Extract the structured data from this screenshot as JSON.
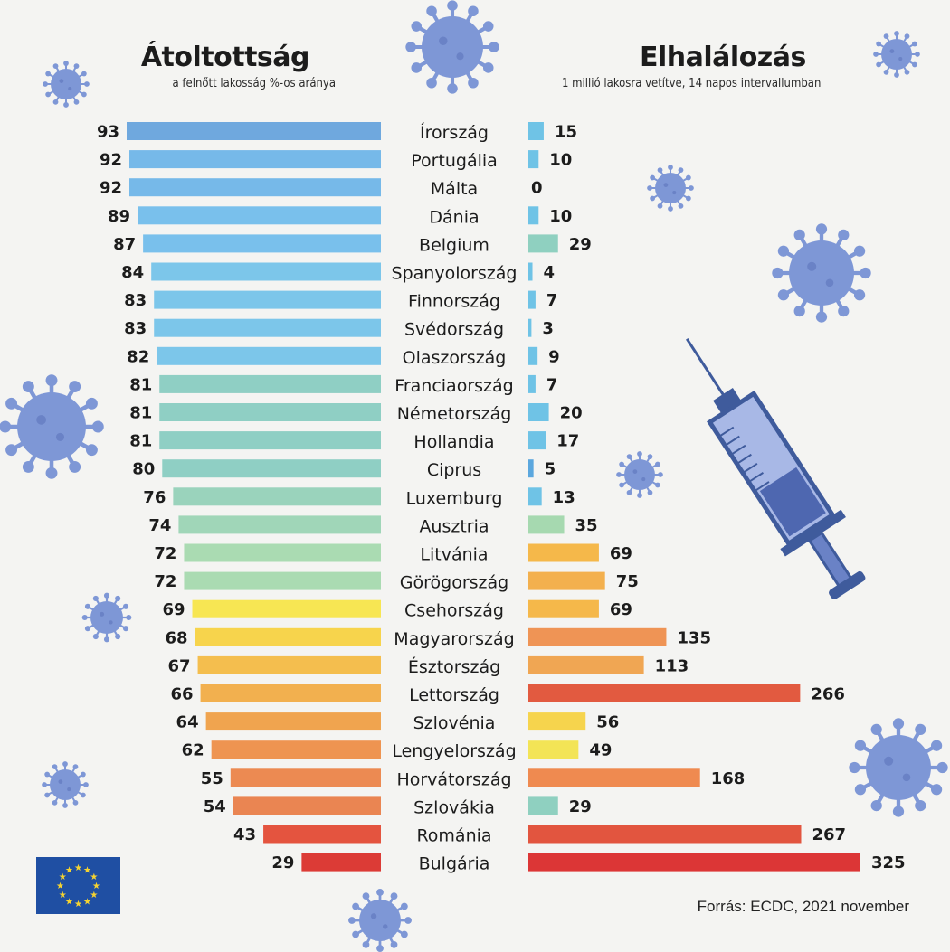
{
  "chart_data": {
    "type": "bar",
    "layout": "butterfly",
    "categories": [
      "Írország",
      "Portugália",
      "Málta",
      "Dánia",
      "Belgium",
      "Spanyolország",
      "Finnország",
      "Svédország",
      "Olaszország",
      "Franciaország",
      "Németország",
      "Hollandia",
      "Ciprus",
      "Luxemburg",
      "Ausztria",
      "Litvánia",
      "Görögország",
      "Csehország",
      "Magyarország",
      "Észtország",
      "Lettország",
      "Szlovénia",
      "Lengyelország",
      "Horvátország",
      "Szlovákia",
      "Románia",
      "Bulgária"
    ],
    "series": [
      {
        "name": "Átoltottság",
        "subtitle": "a felnőtt lakosság %-os aránya",
        "values": [
          93,
          92,
          92,
          89,
          87,
          84,
          83,
          83,
          82,
          81,
          81,
          81,
          80,
          76,
          74,
          72,
          72,
          69,
          68,
          67,
          66,
          64,
          62,
          55,
          54,
          43,
          29
        ],
        "colors": [
          "#6fa8de",
          "#76b9e9",
          "#76b9e9",
          "#79c0ec",
          "#79c0ec",
          "#7cc6ea",
          "#7cc6ea",
          "#7cc6ea",
          "#7cc6ea",
          "#8fcfc4",
          "#8fcfc4",
          "#8fcfc4",
          "#8fcfc4",
          "#9ad3bc",
          "#a0d6b8",
          "#aadbb2",
          "#aadbb2",
          "#f7e653",
          "#f7d44c",
          "#f4be4e",
          "#f2b04f",
          "#f0a44f",
          "#ee9451",
          "#ec8a52",
          "#ea8552",
          "#e4543f",
          "#dc3b36"
        ]
      },
      {
        "name": "Elhalálozás",
        "subtitle": "1 millió lakosra vetítve, 14 napos intervallumban",
        "values": [
          15,
          10,
          0,
          10,
          29,
          4,
          7,
          3,
          9,
          7,
          20,
          17,
          5,
          13,
          35,
          69,
          75,
          69,
          135,
          113,
          266,
          56,
          49,
          168,
          29,
          267,
          325
        ],
        "colors": [
          "#6fc3e6",
          "#6fc3e6",
          "#6fc3e6",
          "#6fc3e6",
          "#8fd0c0",
          "#6fc3e6",
          "#6fc3e6",
          "#6fc3e6",
          "#6fc3e6",
          "#6fc3e6",
          "#6fc3e6",
          "#6fc3e6",
          "#5ba7de",
          "#6fc3e6",
          "#a6d9b0",
          "#f5b84a",
          "#f3b04e",
          "#f5b84a",
          "#ef9455",
          "#f0a653",
          "#e25a40",
          "#f6d44d",
          "#f3e456",
          "#ef8a50",
          "#8fd0c0",
          "#e2553f",
          "#dc3636"
        ]
      }
    ],
    "left_max": 93,
    "right_max": 325
  },
  "titles": {
    "left": "Átoltottság",
    "left_sub": "a felnőtt lakosság %-os aránya",
    "right": "Elhalálozás",
    "right_sub": "1 millió lakosra vetítve, 14 napos intervallumban"
  },
  "source": "Forrás: ECDC, 2021 november",
  "colors": {
    "background": "#f4f4f2",
    "virus": "#7e97d6",
    "eu_blue": "#1f4fa3",
    "eu_star": "#f5d331"
  }
}
